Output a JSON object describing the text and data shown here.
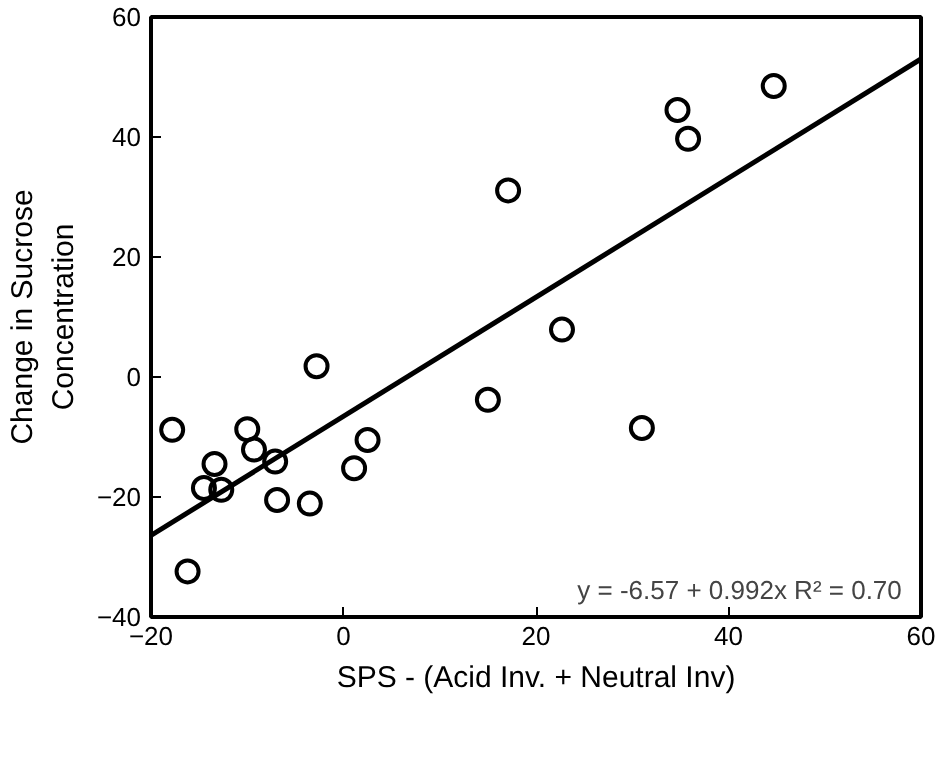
{
  "chart_data": {
    "type": "scatter",
    "xlabel": "SPS - (Acid Inv. + Neutral Inv)",
    "ylabel": "Change in Sucrose\nConcentration",
    "xlim": [
      -20,
      60
    ],
    "ylim": [
      -40,
      60
    ],
    "xticks": [
      -20,
      0,
      20,
      40,
      60
    ],
    "yticks": [
      -40,
      -20,
      0,
      20,
      40,
      60
    ],
    "grid": false,
    "series": [
      {
        "color": "#000000",
        "marker": "circle",
        "x": [
          -2.8,
          15.0,
          17.1,
          22.7,
          34.7,
          35.8,
          44.7,
          -17.8,
          -13.4,
          -14.5,
          -12.7,
          -10.0,
          -9.3,
          -7.1,
          -6.9,
          -3.5,
          1.1,
          2.5,
          31.0,
          -16.2
        ],
        "values": [
          1.8,
          -3.8,
          31.1,
          7.9,
          44.5,
          39.7,
          48.5,
          -8.8,
          -14.5,
          -18.5,
          -18.8,
          -8.7,
          -12.1,
          -14.1,
          -20.5,
          -21.1,
          -15.2,
          -10.5,
          -8.5,
          -32.4
        ]
      },
      {
        "type": "line",
        "color": "#000000",
        "line_style": "solid",
        "x": [
          -20,
          60
        ],
        "values": [
          -26.4,
          53.0
        ]
      }
    ],
    "annotations": [
      "y = -6.57 + 0.992x  R² = 0.70"
    ]
  }
}
